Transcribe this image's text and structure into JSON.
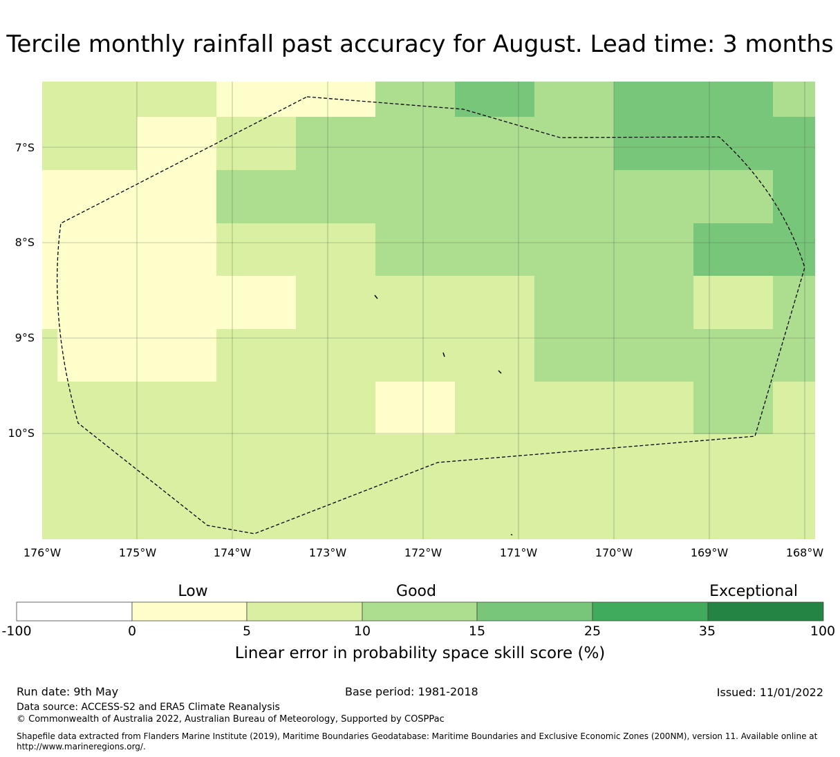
{
  "title": "Tercile monthly rainfall past accuracy for August. Lead time: 3 months",
  "map": {
    "lon_labels": [
      "176°W",
      "175°W",
      "174°W",
      "173°W",
      "172°W",
      "171°W",
      "170°W",
      "169°W",
      "168°W"
    ],
    "lat_labels": [
      "7°S",
      "8°S",
      "9°S",
      "10°S"
    ],
    "colors": {
      "c0": "#ffffcc",
      "c5": "#d9f0a3",
      "c10": "#addd8e",
      "c15": "#78c679",
      "boundary": "#000000"
    },
    "gridlines": true,
    "boundary_style": "dashed"
  },
  "legend": {
    "categories": [
      "Low",
      "Good",
      "Exceptional"
    ],
    "ticks": [
      "-100",
      "0",
      "5",
      "10",
      "15",
      "25",
      "35",
      "100"
    ],
    "colors": [
      "#ffffff",
      "#ffffcc",
      "#d9f0a3",
      "#addd8e",
      "#78c679",
      "#41ab5d",
      "#238443"
    ],
    "label": "Linear error in probability space skill score (%)"
  },
  "footer": {
    "run_date": "Run date: 9th May",
    "base_period": "Base period: 1981-2018",
    "issued": "Issued: 11/01/2022",
    "data_source": "Data source: ACCESS-S2 and ERA5 Climate Reanalysis",
    "copyright": "© Commonwealth of Australia 2022, Australian Bureau of Meteorology, Supported by COSPPac",
    "shapefile": "Shapefile data extracted from Flanders Marine Institute (2019), Maritime Boundaries Geodatabase: Maritime Boundaries and Exclusive Economic Zones (200NM), version 11. Available online at http://www.marineregions.org/."
  }
}
